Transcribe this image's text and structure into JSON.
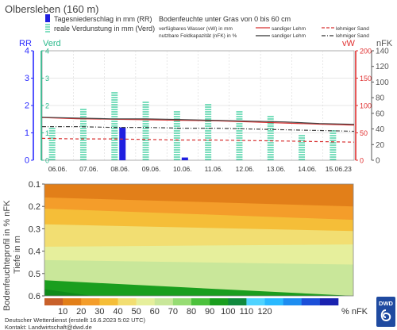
{
  "station": "Olbersleben (160 m)",
  "colors": {
    "precip": "#1f1fe0",
    "evap": "#33cc99",
    "vw_red": "#d83030",
    "nfk_dark": "#555555",
    "grid": "#d0d0d0",
    "rr_axis": "#2a2aff",
    "verd_axis": "#2ab98b",
    "vw_axis": "#e03030"
  },
  "legend": {
    "precip": "Tagesniederschlag in mm (RR)",
    "evap": "reale Verdunstung in mm (Verd)",
    "title_right": "Bodenfeuchte unter Gras von 0 bis 60 cm",
    "vw": "verfügbares Wasser (vW) in mm",
    "nfk": "nutzbare Feldkapazität (nFK) in %",
    "sandy_loam": "sandiger Lehm",
    "loamy_sand": "lehmiger Sand"
  },
  "chart_data": [
    {
      "type": "bar",
      "title": "",
      "axes": {
        "left_rr": {
          "label": "RR",
          "ticks": [
            "0",
            "1",
            "2",
            "3",
            "4"
          ],
          "range": [
            0,
            4
          ]
        },
        "left_verd": {
          "label": "Verd",
          "ticks": [
            "0",
            "1",
            "2",
            "3",
            "4"
          ],
          "range": [
            0,
            4
          ]
        },
        "right_vw": {
          "label": "vW",
          "ticks": [
            "0",
            "50",
            "100",
            "150",
            "200"
          ],
          "range": [
            0,
            200
          ]
        },
        "right_nfk": {
          "label": "nFK",
          "ticks": [
            "0",
            "20",
            "40",
            "60",
            "80",
            "100",
            "120",
            "140"
          ],
          "range": [
            0,
            140
          ]
        }
      },
      "categories": [
        "06.06.",
        "07.06.",
        "08.06.",
        "09.06.",
        "10.06.",
        "11.06.",
        "12.06.",
        "13.06.",
        "14.06.",
        "15.06.23"
      ],
      "series": [
        {
          "name": "Tagesniederschlag in mm (RR)",
          "values": [
            0,
            0,
            1.2,
            0,
            0.1,
            0,
            0,
            0,
            0,
            0
          ]
        },
        {
          "name": "reale Verdunstung in mm (Verd)",
          "values": [
            1.2,
            1.9,
            2.5,
            2.2,
            1.8,
            2.1,
            1.8,
            1.6,
            0.9,
            1.1
          ]
        },
        {
          "name": "vW sandiger Lehm",
          "values": [
            78,
            76,
            75,
            74,
            73,
            72,
            70,
            68,
            66,
            64
          ]
        },
        {
          "name": "vW lehmiger Sand",
          "values": [
            40,
            39,
            39,
            38,
            37,
            37,
            36,
            35,
            34,
            33
          ]
        },
        {
          "name": "nFK sandiger Lehm",
          "values": [
            55,
            54,
            53,
            53,
            52,
            51,
            50,
            49,
            47,
            46
          ]
        },
        {
          "name": "nFK lehmiger Sand",
          "values": [
            43,
            43,
            42,
            42,
            41,
            41,
            40,
            39,
            38,
            37
          ]
        }
      ]
    },
    {
      "type": "heatmap",
      "ylabel": "Bodenfeuchteprofil in % nFK",
      "ylabel2": "Tiefe in m",
      "y_ticks": [
        "0.1",
        "0.2",
        "0.3",
        "0.4",
        "0.5",
        "0.6"
      ],
      "depth_range": [
        0.1,
        0.6
      ],
      "x_range": [
        0,
        10
      ],
      "boundaries": [
        {
          "from": 10,
          "to": 20,
          "start_depth": 0.1,
          "end_depth": 0.1
        },
        {
          "from": 20,
          "to": 30,
          "start_depth": 0.16,
          "end_depth": 0.2
        },
        {
          "from": 30,
          "to": 40,
          "start_depth": 0.21,
          "end_depth": 0.26
        },
        {
          "from": 40,
          "to": 50,
          "start_depth": 0.28,
          "end_depth": 0.31
        },
        {
          "from": 50,
          "to": 60,
          "start_depth": 0.38,
          "end_depth": 0.37
        },
        {
          "from": 60,
          "to": 70,
          "start_depth": 0.44,
          "end_depth": 0.46
        },
        {
          "from": 70,
          "to": 80,
          "start_depth": 0.53,
          "end_depth": 0.6
        }
      ],
      "colorbar": {
        "ticks": [
          "10",
          "20",
          "30",
          "40",
          "50",
          "60",
          "70",
          "80",
          "90",
          "100",
          "110",
          "120"
        ],
        "unit": "% nFK",
        "colors": [
          "#c8602a",
          "#e27f19",
          "#f49d2a",
          "#f5be38",
          "#f2de72",
          "#e6ef9c",
          "#c9e79a",
          "#96dc73",
          "#4cc13c",
          "#1a9e1e",
          "#108a3e",
          "#4fd3ff",
          "#29b9ff",
          "#1e8df0",
          "#1c4fd8",
          "#1a22b0"
        ]
      }
    }
  ],
  "footer": {
    "line1": "Deutscher Wetterdienst (erstellt 16.6.2023 5:02 UTC)",
    "line2": "Kontakt: Landwirtschaft@dwd.de"
  },
  "logo": {
    "text": "DWD"
  }
}
